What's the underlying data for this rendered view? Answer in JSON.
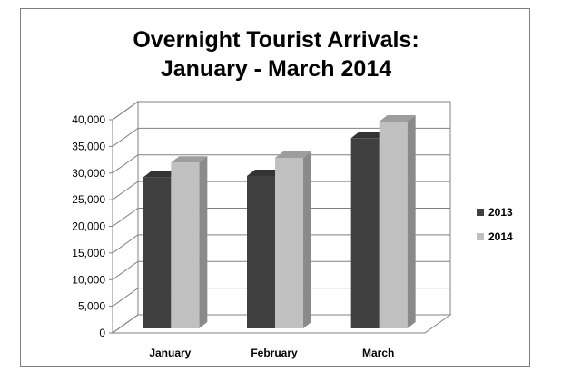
{
  "chart_data": {
    "type": "bar",
    "title_lines": [
      "Overnight Tourist Arrivals:",
      "January - March 2014"
    ],
    "categories": [
      "January",
      "February",
      "March"
    ],
    "series": [
      {
        "name": "2013",
        "values": [
          28300,
          28600,
          35700
        ],
        "color": "#404040"
      },
      {
        "name": "2014",
        "values": [
          31100,
          32000,
          38800
        ],
        "color": "#c0c0c0"
      }
    ],
    "y_ticks": [
      "0",
      "5,000",
      "10,000",
      "15,000",
      "20,000",
      "25,000",
      "30,000",
      "35,000",
      "40,000"
    ],
    "ylim": [
      0,
      40000
    ],
    "grid": true,
    "legend_position": "right",
    "style": "3d-clustered-column"
  }
}
